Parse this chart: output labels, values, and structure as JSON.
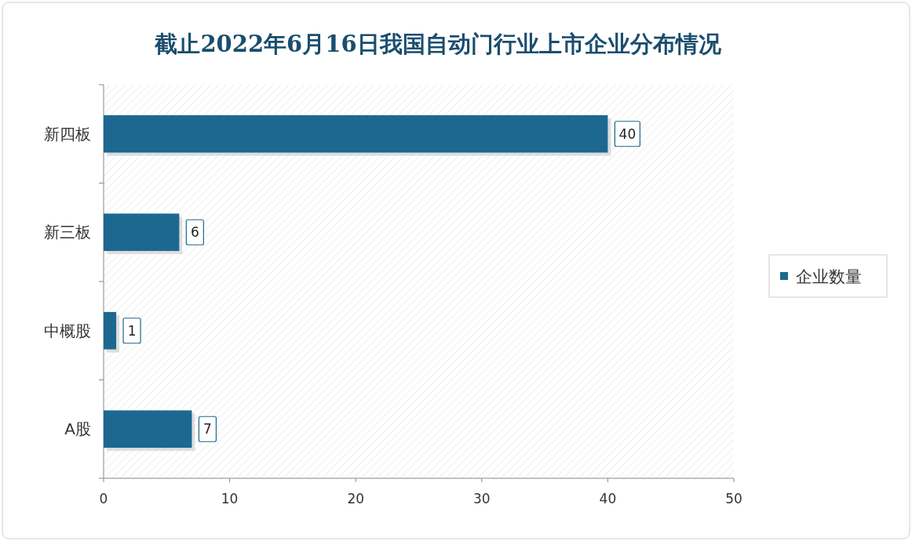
{
  "chart_data": {
    "type": "bar",
    "title": "截止2022年6月16日我国自动门行业上市企业分布情况",
    "orientation": "horizontal",
    "categories": [
      "新四板",
      "新三板",
      "中概股",
      "A股"
    ],
    "series": [
      {
        "name": "企业数量",
        "color": "#1c6890",
        "values": [
          40,
          6,
          1,
          7
        ]
      }
    ],
    "xlim": [
      0,
      50
    ],
    "xticks": [
      0,
      10,
      20,
      30,
      40,
      50
    ],
    "legend": "right",
    "data_labels": true
  }
}
